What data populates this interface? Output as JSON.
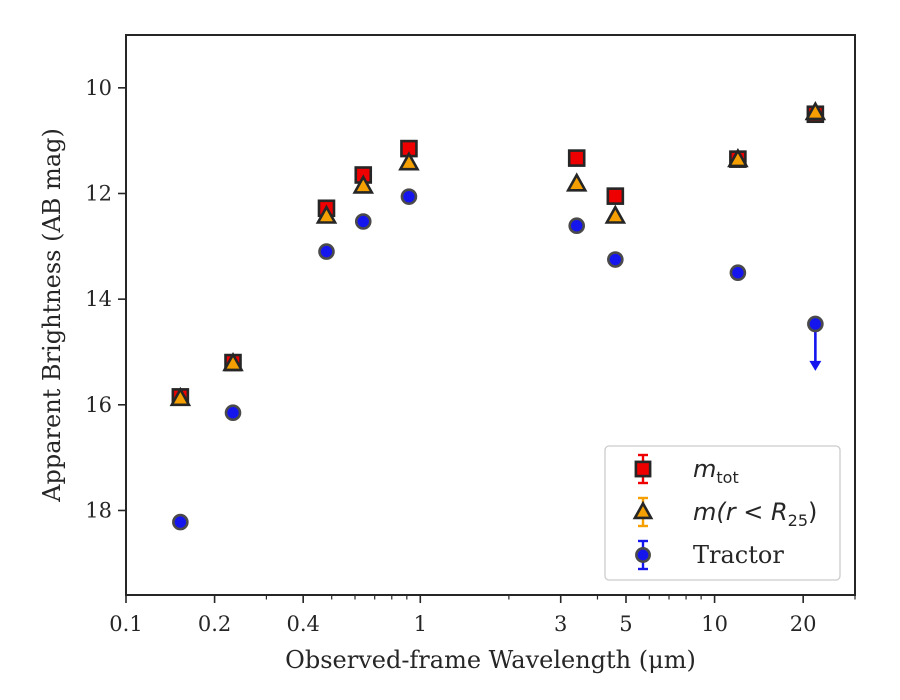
{
  "chart_data": {
    "type": "scatter",
    "xlabel": "Observed-frame Wavelength (μm)",
    "ylabel": "Apparent Brightness (AB mag)",
    "xscale": "log",
    "xlim": [
      0.1,
      30
    ],
    "ylim": [
      19.6,
      9.0
    ],
    "y_inverted": true,
    "xticks": [
      0.1,
      0.2,
      0.4,
      1,
      3,
      5,
      10,
      20
    ],
    "xtick_labels": [
      "0.1",
      "0.2",
      "0.4",
      "1",
      "3",
      "5",
      "10",
      "20"
    ],
    "yticks": [
      10,
      12,
      14,
      16,
      18
    ],
    "ytick_labels": [
      "10",
      "12",
      "14",
      "16",
      "18"
    ],
    "legend_position": "lower-right",
    "series": [
      {
        "name": "m_tot",
        "legend_main": "m",
        "legend_sub": "tot",
        "marker": "square",
        "color": "#ee0000",
        "x": [
          0.153,
          0.231,
          0.48,
          0.64,
          0.915,
          3.4,
          4.6,
          12.0,
          22.0
        ],
        "y": [
          15.85,
          15.2,
          12.28,
          11.65,
          11.15,
          11.33,
          12.05,
          11.35,
          10.5
        ]
      },
      {
        "name": "m(r < R25)",
        "legend_main": "m(r < R",
        "legend_sub": "25",
        "legend_tail": ")",
        "marker": "triangle",
        "color": "#f5a000",
        "x": [
          0.153,
          0.231,
          0.48,
          0.64,
          0.915,
          3.4,
          4.6,
          12.0,
          22.0
        ],
        "y": [
          15.88,
          15.22,
          12.43,
          11.86,
          11.42,
          11.82,
          12.43,
          11.36,
          10.47
        ]
      },
      {
        "name": "Tractor",
        "legend_main": "Tractor",
        "marker": "circle",
        "color": "#1515ee",
        "upper_limit_index": 8,
        "x": [
          0.153,
          0.231,
          0.48,
          0.64,
          0.915,
          3.4,
          4.6,
          12.0,
          22.0
        ],
        "y": [
          18.22,
          16.15,
          13.1,
          12.53,
          12.06,
          12.61,
          13.25,
          13.5,
          14.47
        ]
      }
    ]
  }
}
